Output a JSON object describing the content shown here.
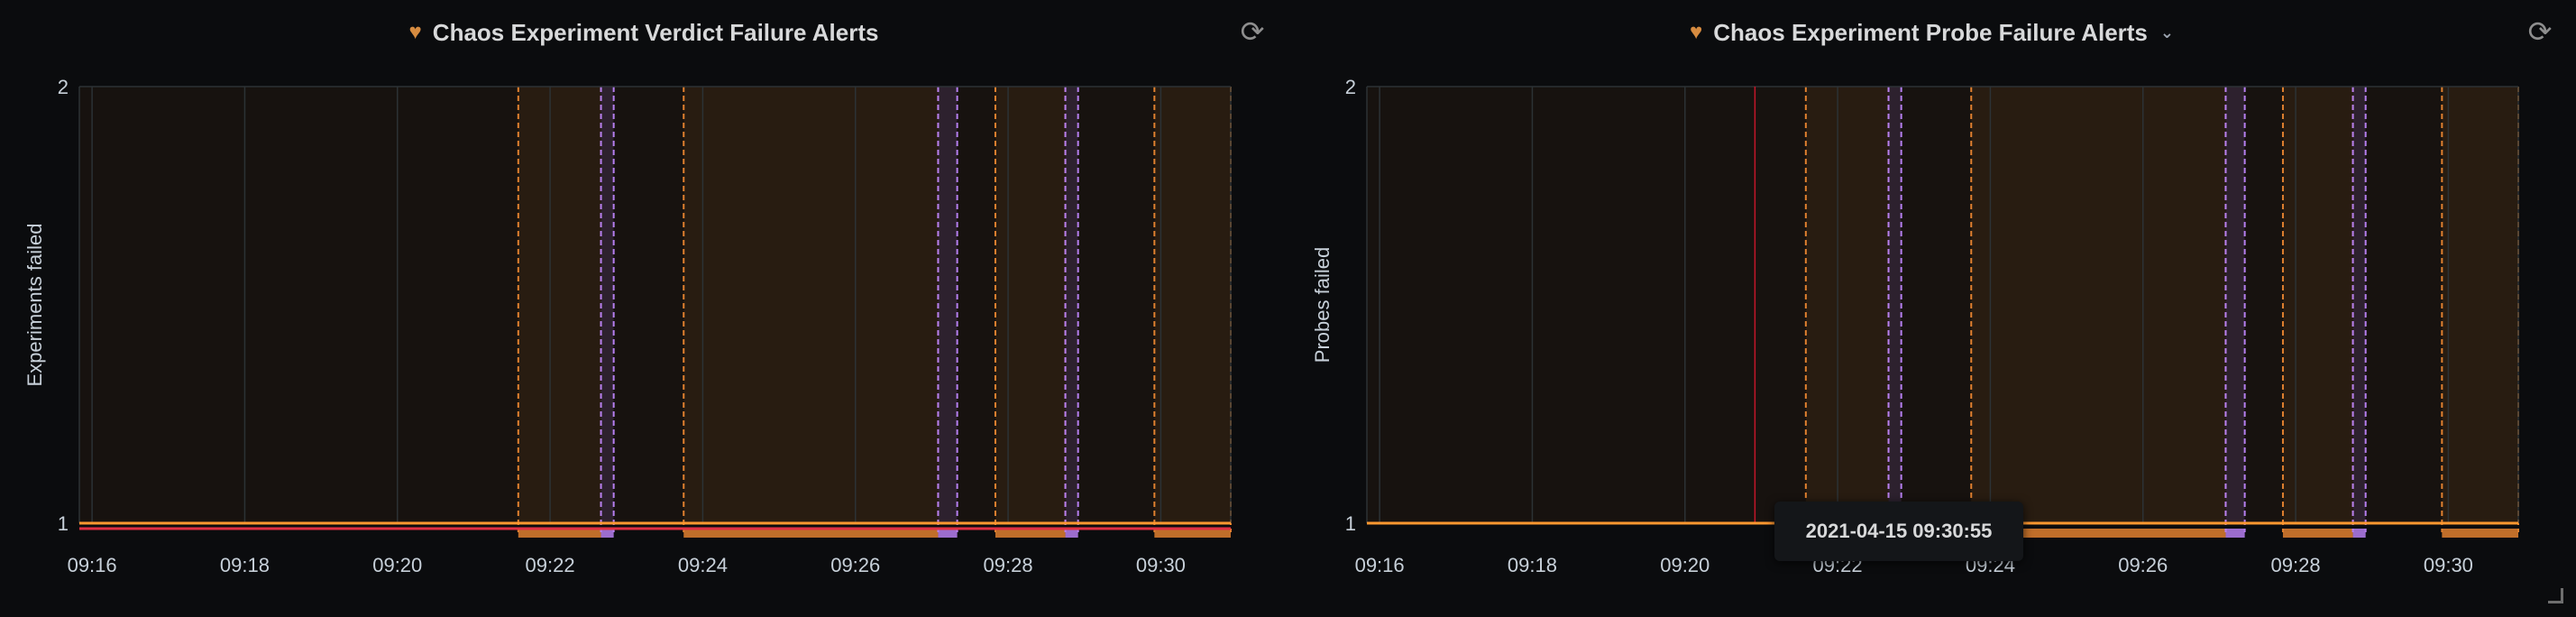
{
  "panels": [
    {
      "title": "Chaos Experiment Verdict Failure Alerts",
      "icon": "heart-icon",
      "has_menu": false,
      "refresh_icon": "refresh-icon"
    },
    {
      "title": "Chaos Experiment Probe Failure Alerts",
      "icon": "heart-icon",
      "has_menu": true,
      "menu_glyph": "⌄",
      "refresh_icon": "refresh-icon"
    }
  ],
  "tooltip": {
    "text": "2021-04-15 09:30:55"
  },
  "colors": {
    "annotation_orange": "#e0802f",
    "annotation_purple": "#b67ff0",
    "series_red": "#e02f44",
    "series_orange": "#ff9830",
    "grid": "#2c3235",
    "tick_text": "#c7d0d9"
  },
  "chart_data": [
    {
      "type": "line",
      "title": "Chaos Experiment Verdict Failure Alerts",
      "ylabel": "Experiments failed",
      "xlabel": "",
      "x_ticks": [
        "09:16",
        "09:18",
        "09:20",
        "09:22",
        "09:24",
        "09:26",
        "09:28",
        "09:30"
      ],
      "y_ticks": [
        1,
        2
      ],
      "xlim": [
        "09:15:50",
        "09:30:55"
      ],
      "ylim": [
        1,
        2
      ],
      "grid": true,
      "legend": "none",
      "series": [
        {
          "color": "#e02f44",
          "x": [
            "09:15:50",
            "09:30:55"
          ],
          "values": [
            1,
            1
          ]
        },
        {
          "color": "#ff9830",
          "x": [
            "09:15:50",
            "09:30:55"
          ],
          "values": [
            1,
            1
          ]
        }
      ],
      "annotation_regions": [
        {
          "start": "09:21:35",
          "end": "09:22:40",
          "kind": "orange"
        },
        {
          "start": "09:22:40",
          "end": "09:22:50",
          "kind": "purple"
        },
        {
          "start": "09:23:45",
          "end": "09:27:05",
          "kind": "orange"
        },
        {
          "start": "09:27:05",
          "end": "09:27:20",
          "kind": "purple"
        },
        {
          "start": "09:27:50",
          "end": "09:28:45",
          "kind": "orange"
        },
        {
          "start": "09:28:45",
          "end": "09:28:55",
          "kind": "purple"
        },
        {
          "start": "09:29:55",
          "end": "09:30:55",
          "kind": "orange"
        }
      ]
    },
    {
      "type": "line",
      "title": "Chaos Experiment Probe Failure Alerts",
      "ylabel": "Probes failed",
      "xlabel": "",
      "x_ticks": [
        "09:16",
        "09:18",
        "09:20",
        "09:22",
        "09:24",
        "09:26",
        "09:28",
        "09:30"
      ],
      "y_ticks": [
        1,
        2
      ],
      "xlim": [
        "09:15:50",
        "09:30:55"
      ],
      "ylim": [
        1,
        2
      ],
      "grid": true,
      "legend": "none",
      "cursor": "09:20:55",
      "series": [
        {
          "color": "#ff9830",
          "x": [
            "09:15:50",
            "09:30:55"
          ],
          "values": [
            1,
            1
          ]
        }
      ],
      "annotation_regions": [
        {
          "start": "09:21:35",
          "end": "09:22:40",
          "kind": "orange"
        },
        {
          "start": "09:22:40",
          "end": "09:22:50",
          "kind": "purple"
        },
        {
          "start": "09:23:45",
          "end": "09:27:05",
          "kind": "orange"
        },
        {
          "start": "09:27:05",
          "end": "09:27:20",
          "kind": "purple"
        },
        {
          "start": "09:27:50",
          "end": "09:28:45",
          "kind": "orange"
        },
        {
          "start": "09:28:45",
          "end": "09:28:55",
          "kind": "purple"
        },
        {
          "start": "09:29:55",
          "end": "09:30:55",
          "kind": "orange"
        }
      ]
    }
  ]
}
